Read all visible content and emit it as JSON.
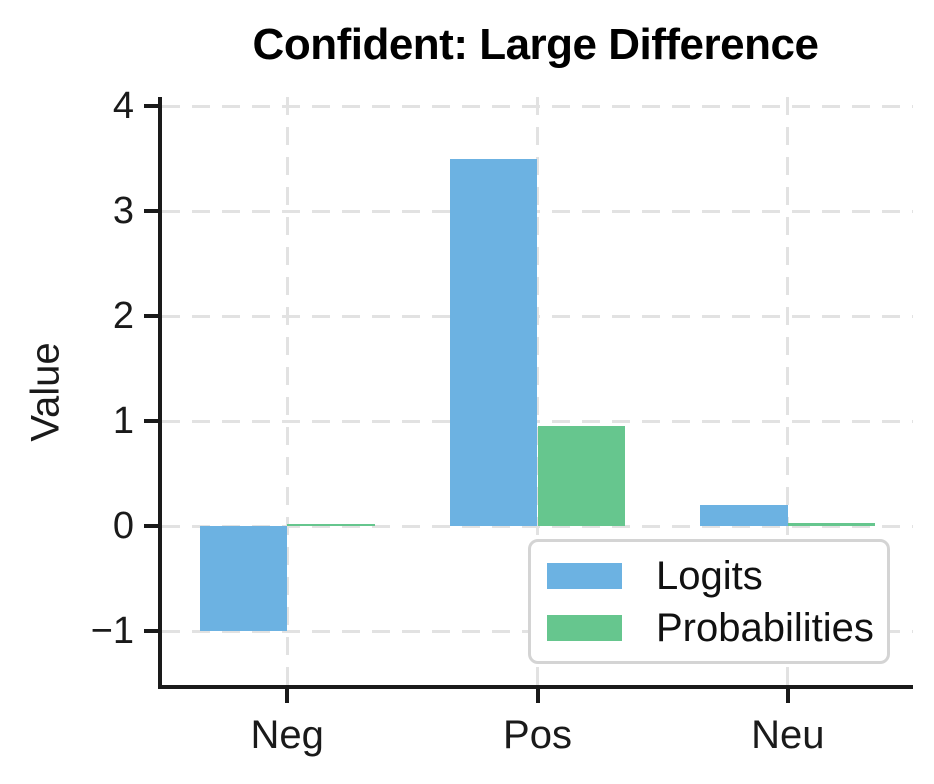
{
  "chart_data": {
    "type": "bar",
    "title": "Confident: Large Difference",
    "ylabel": "Value",
    "xlabel": "",
    "categories": [
      "Neg",
      "Pos",
      "Neu"
    ],
    "series": [
      {
        "name": "Logits",
        "color": "#6CB2E2",
        "values": [
          -1.0,
          3.5,
          0.2
        ]
      },
      {
        "name": "Probabilities",
        "color": "#66C68E",
        "values": [
          0.011,
          0.954,
          0.035
        ]
      }
    ],
    "yticks": [
      {
        "label": "4",
        "value": 4
      },
      {
        "label": "3",
        "value": 3
      },
      {
        "label": "2",
        "value": 2
      },
      {
        "label": "1",
        "value": 1
      },
      {
        "label": "0",
        "value": 0
      },
      {
        "label": "−1",
        "value": -1
      }
    ],
    "ylim": [
      -1.51,
      4.09
    ],
    "xlim": [
      -0.5,
      2.5
    ],
    "bar_width_fraction": 0.35,
    "grid": "dashed-both",
    "legend_position": "lower-right",
    "text_color": "#1a1a1a",
    "grid_color": "#e2e2e2"
  }
}
